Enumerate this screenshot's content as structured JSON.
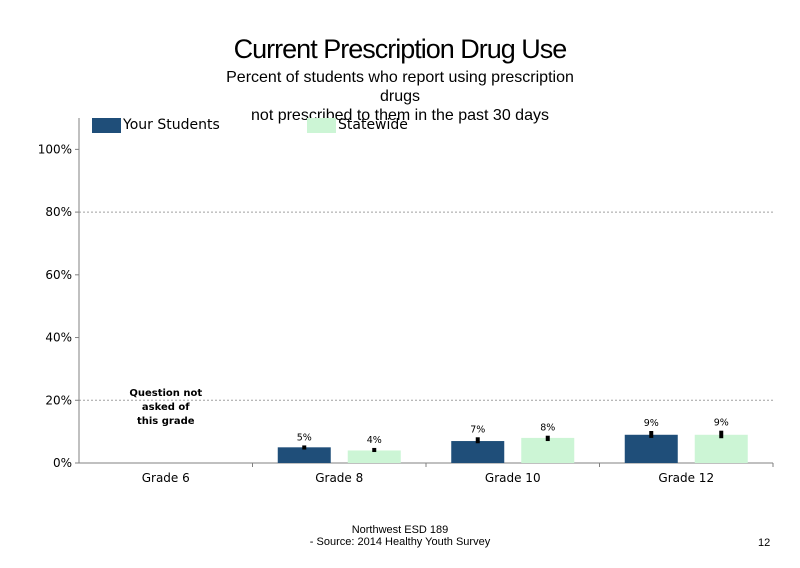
{
  "slide": {
    "title": "Current Prescription Drug Use",
    "subtitle_lines": [
      "Percent of students  who report using prescription",
      "drugs",
      "not prescribed to them in the past 30 days"
    ],
    "footer_lines": [
      "Northwest ESD  189",
      "- Source: 2014 Healthy  Youth Survey"
    ],
    "page_number": "12"
  },
  "chart_data": {
    "type": "bar",
    "categories": [
      "Grade 6",
      "Grade 8",
      "Grade 10",
      "Grade 12"
    ],
    "series": [
      {
        "name": "Your Students",
        "values": [
          null,
          5,
          7,
          9
        ],
        "labels": [
          "",
          "5%",
          "7%",
          "9%"
        ],
        "color": "#1f4e79"
      },
      {
        "name": "Statewide",
        "values": [
          null,
          4,
          8,
          9
        ],
        "labels": [
          "",
          "4%",
          "8%",
          "9%"
        ],
        "color": "#ccf5d5"
      }
    ],
    "error_bars": [
      [
        null,
        [
          4.3,
          5.6
        ],
        [
          6.3,
          8.2
        ],
        [
          8.0,
          10.2
        ]
      ],
      [
        null,
        [
          3.5,
          4.8
        ],
        [
          7.0,
          8.7
        ],
        [
          7.9,
          10.3
        ]
      ]
    ],
    "ylim": [
      0,
      110
    ],
    "yticks": [
      0,
      20,
      40,
      60,
      80,
      100
    ],
    "ytick_labels": [
      "0%",
      "20%",
      "40%",
      "60%",
      "80%",
      "100%"
    ],
    "gridlines": "dotted at 20%, 80%",
    "legend_placement": "top",
    "annotation": {
      "category": "Grade 6",
      "lines": [
        "Question not",
        "asked of",
        "this grade"
      ]
    },
    "xlabel": "",
    "ylabel": ""
  }
}
